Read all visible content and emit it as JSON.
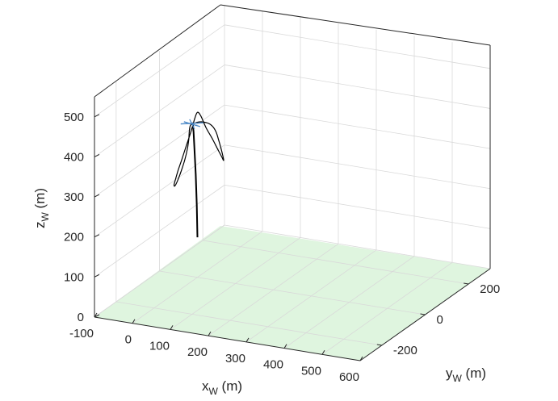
{
  "chart_data": {
    "type": "line",
    "projection": "3d",
    "xlabel": "x",
    "xlabel_sub": "W",
    "xlabel_unit": " (m)",
    "ylabel": "y",
    "ylabel_sub": "W",
    "ylabel_unit": " (m)",
    "zlabel": "z",
    "zlabel_sub": "W",
    "zlabel_unit": " (m)",
    "xlim": [
      -100,
      600
    ],
    "ylim": [
      -300,
      300
    ],
    "zlim": [
      0,
      550
    ],
    "xticks": [
      -100,
      0,
      100,
      200,
      300,
      400,
      500,
      600
    ],
    "xtick_labels": [
      "-100",
      "0",
      "100",
      "200",
      "300",
      "400",
      "500",
      "600"
    ],
    "yticks": [
      -200,
      0,
      200
    ],
    "ytick_labels": [
      "-200",
      "0",
      "200"
    ],
    "zticks": [
      0,
      100,
      200,
      300,
      400,
      500
    ],
    "ztick_labels": [
      "0",
      "100",
      "200",
      "300",
      "400",
      "500"
    ],
    "grid": true,
    "ground_color": "#dff5df",
    "line_color": "#000000",
    "kite_color": "#4a88c7",
    "tether": {
      "x": [
        0,
        0,
        0,
        0,
        0,
        0
      ],
      "y": [
        0,
        -3,
        -8,
        -14,
        -18,
        -22
      ],
      "z": [
        100,
        180,
        260,
        330,
        370,
        395
      ]
    },
    "series": [
      {
        "values_x": [
          0,
          0,
          0,
          0,
          0,
          0,
          0,
          0,
          0,
          0,
          0,
          0,
          0,
          0,
          0,
          0,
          0,
          0,
          0,
          0,
          0,
          0,
          0,
          0,
          0,
          0,
          0,
          0,
          0,
          0,
          0,
          0,
          0
        ],
        "values_y": [
          -25,
          8,
          42,
          68,
          86,
          98,
          108,
          116,
          120,
          120,
          112,
          95,
          70,
          40,
          15,
          0,
          -12,
          -28,
          -50,
          -72,
          -90,
          -102,
          -108,
          -104,
          -92,
          -75,
          -58,
          -46,
          -40,
          -38,
          -36,
          -32,
          -25
        ],
        "values_z": [
          392,
          385,
          370,
          352,
          330,
          305,
          282,
          262,
          250,
          246,
          258,
          282,
          318,
          358,
          398,
          412,
          402,
          378,
          350,
          322,
          300,
          282,
          272,
          268,
          276,
          294,
          316,
          340,
          360,
          376,
          386,
          392,
          392
        ]
      }
    ],
    "kite": {
      "y": -25,
      "z": 392,
      "span_y": 30
    }
  }
}
